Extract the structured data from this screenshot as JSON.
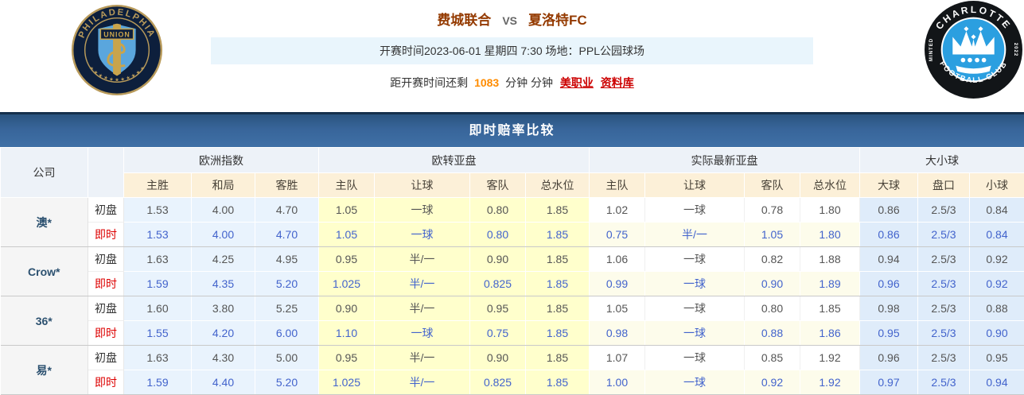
{
  "header": {
    "home_team": "费城联合",
    "vs_label": "VS",
    "away_team": "夏洛特FC",
    "kickoff_line": "开赛时间2023-06-01 星期四 7:30  场地：PPL公园球场",
    "countdown_prefix": "距开赛时间还剩",
    "countdown_minutes": "1083",
    "countdown_suffix": "分钟 分钟",
    "links": [
      {
        "label": "美职业"
      },
      {
        "label": "资料库"
      }
    ],
    "home_logo": {
      "name": "philadelphia-union",
      "ring_text": "PHILADELPHIA",
      "stars": "★ ★ ★ ★ ★ ★ ★ ★ ★ ★ ★",
      "shield_text": "UNION",
      "navy": "#0d1f3c",
      "gold": "#b89a5a",
      "light_blue": "#5aa6dd"
    },
    "away_logo": {
      "name": "charlotte-fc",
      "top_text": "CHARLOTTE",
      "bottom_text": "FOOTBALL CLUB",
      "left_text": "MINTED",
      "right_text": "2022",
      "black": "#121518",
      "blue": "#2b9fe0"
    }
  },
  "banner": {
    "title": "即时赔率比较"
  },
  "table": {
    "company_header": "公司",
    "groups": [
      {
        "label": "欧洲指数"
      },
      {
        "label": "欧转亚盘"
      },
      {
        "label": "实际最新亚盘"
      },
      {
        "label": "大小球"
      }
    ],
    "sub_headers": [
      "主胜",
      "和局",
      "客胜",
      "主队",
      "让球",
      "客队",
      "总水位",
      "主队",
      "让球",
      "客队",
      "总水位",
      "大球",
      "盘口",
      "小球"
    ],
    "row_labels": {
      "initial": "初盘",
      "live": "即时"
    },
    "companies": [
      {
        "name": "澳*",
        "initial": [
          "1.53",
          "4.00",
          "4.70",
          "1.05",
          "一球",
          "0.80",
          "1.85",
          "1.02",
          "一球",
          "0.78",
          "1.80",
          "0.86",
          "2.5/3",
          "0.84"
        ],
        "live": [
          "1.53",
          "4.00",
          "4.70",
          "1.05",
          "一球",
          "0.80",
          "1.85",
          "0.75",
          "半/一",
          "1.05",
          "1.80",
          "0.86",
          "2.5/3",
          "0.84"
        ]
      },
      {
        "name": "Crow*",
        "initial": [
          "1.63",
          "4.25",
          "4.95",
          "0.95",
          "半/一",
          "0.90",
          "1.85",
          "1.06",
          "一球",
          "0.82",
          "1.88",
          "0.94",
          "2.5/3",
          "0.92"
        ],
        "live": [
          "1.59",
          "4.35",
          "5.20",
          "1.025",
          "半/一",
          "0.825",
          "1.85",
          "0.99",
          "一球",
          "0.90",
          "1.89",
          "0.96",
          "2.5/3",
          "0.92"
        ]
      },
      {
        "name": "36*",
        "initial": [
          "1.60",
          "3.80",
          "5.25",
          "0.90",
          "半/一",
          "0.95",
          "1.85",
          "1.05",
          "一球",
          "0.80",
          "1.85",
          "0.98",
          "2.5/3",
          "0.88"
        ],
        "live": [
          "1.55",
          "4.20",
          "6.00",
          "1.10",
          "一球",
          "0.75",
          "1.85",
          "0.98",
          "一球",
          "0.88",
          "1.86",
          "0.95",
          "2.5/3",
          "0.90"
        ]
      },
      {
        "name": "易*",
        "initial": [
          "1.63",
          "4.30",
          "5.00",
          "0.95",
          "半/一",
          "0.90",
          "1.85",
          "1.07",
          "一球",
          "0.85",
          "1.92",
          "0.96",
          "2.5/3",
          "0.95"
        ],
        "live": [
          "1.59",
          "4.40",
          "5.20",
          "1.025",
          "半/一",
          "0.825",
          "1.85",
          "1.00",
          "一球",
          "0.92",
          "1.92",
          "0.97",
          "2.5/3",
          "0.94"
        ]
      }
    ]
  },
  "colors": {
    "banner_top": "#15304d",
    "banner_grad_a": "#2a547f",
    "banner_grad_b": "#3f70a6",
    "header_group_bg": "#edf2f8",
    "header_sub_bg": "#fcf0d8",
    "euro_bg": "#e9f3fd",
    "asia_bg": "#ffffcc",
    "real_live_bg": "#fdfceb",
    "ou_bg": "#dfecfa",
    "live_text": "#4263cc",
    "initial_text": "#555555",
    "label_live": "#dd0000",
    "company_text": "#2c5170",
    "team_title": "#943a00",
    "minutes": "#ff8c00",
    "link": "#cc0000",
    "kickoff_bg": "#e9f5fc"
  }
}
